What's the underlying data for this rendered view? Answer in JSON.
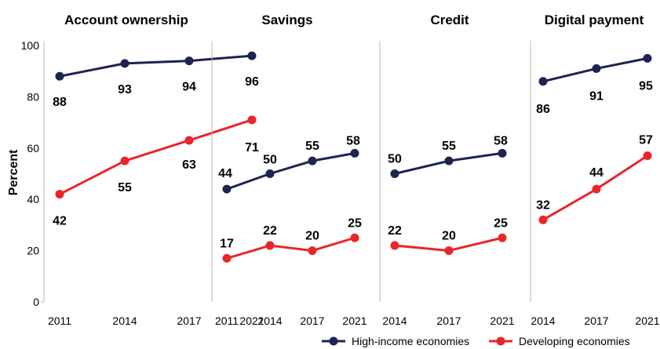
{
  "chart_data": {
    "type": "line",
    "ylabel": "Percent",
    "ylim": [
      0,
      100
    ],
    "yticks": [
      "0",
      "20",
      "40",
      "60",
      "80",
      "100"
    ],
    "grid": false,
    "legend_position": "bottom-right",
    "colors": {
      "high": "#1d2452",
      "developing": "#e8262b"
    },
    "legend": [
      "High-income economies",
      "Developing economies"
    ],
    "panels": [
      {
        "title": "Account ownership",
        "x": [
          "2011",
          "2014",
          "2017",
          "2021"
        ],
        "series": [
          {
            "name": "High-income economies",
            "values": [
              88,
              93,
              94,
              96
            ],
            "labels": [
              "88",
              "93",
              "94",
              "96"
            ]
          },
          {
            "name": "Developing economies",
            "values": [
              42,
              55,
              63,
              71
            ],
            "labels": [
              "42",
              "55",
              "63",
              "71"
            ]
          }
        ]
      },
      {
        "title": "Savings",
        "x": [
          "2011",
          "2014",
          "2017",
          "2021"
        ],
        "series": [
          {
            "name": "High-income economies",
            "values": [
              44,
              50,
              55,
              58
            ],
            "labels": [
              "44",
              "50",
              "55",
              "58"
            ]
          },
          {
            "name": "Developing economies",
            "values": [
              17,
              22,
              20,
              25
            ],
            "labels": [
              "17",
              "22",
              "20",
              "25"
            ]
          }
        ]
      },
      {
        "title": "Credit",
        "x": [
          "2014",
          "2017",
          "2021"
        ],
        "series": [
          {
            "name": "High-income economies",
            "values": [
              50,
              55,
              58
            ],
            "labels": [
              "50",
              "55",
              "58"
            ]
          },
          {
            "name": "Developing economies",
            "values": [
              22,
              20,
              25
            ],
            "labels": [
              "22",
              "20",
              "25"
            ]
          }
        ]
      },
      {
        "title": "Digital payment",
        "x": [
          "2014",
          "2017",
          "2021"
        ],
        "series": [
          {
            "name": "High-income economies",
            "values": [
              86,
              91,
              95
            ],
            "labels": [
              "86",
              "91",
              "95"
            ]
          },
          {
            "name": "Developing economies",
            "values": [
              32,
              44,
              57
            ],
            "labels": [
              "32",
              "44",
              "57"
            ]
          }
        ]
      }
    ]
  }
}
